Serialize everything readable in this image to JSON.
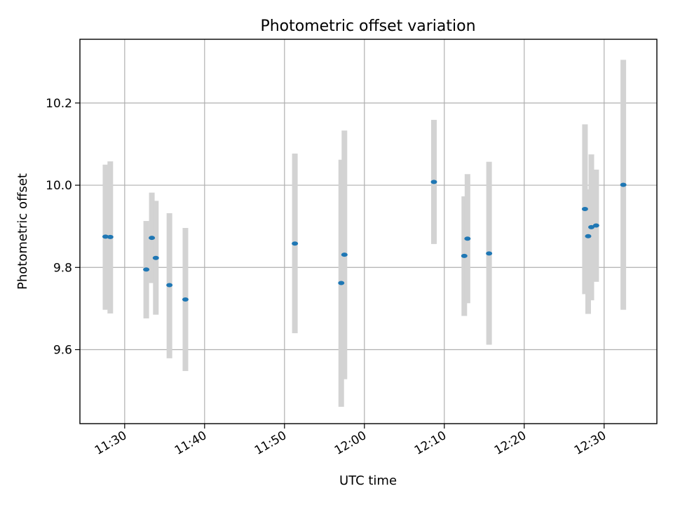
{
  "chart_data": {
    "type": "scatter",
    "title": "Photometric offset variation",
    "xlabel": "UTC time",
    "ylabel": "Photometric offset",
    "xlim": [
      "11:24:24",
      "12:36:36"
    ],
    "ylim": [
      9.42,
      10.355
    ],
    "x_ticks": [
      "11:30",
      "11:40",
      "11:50",
      "12:00",
      "12:10",
      "12:20",
      "12:30"
    ],
    "y_ticks": [
      9.6,
      9.8,
      10.0,
      10.2
    ],
    "grid": true,
    "marker_color": "#1f77b4",
    "errorbar_color": "#d3d3d3",
    "series": [
      {
        "points": [
          {
            "x": "11:27:36",
            "y": 9.875,
            "err_low": 9.697,
            "err_high": 10.05
          },
          {
            "x": "11:28:12",
            "y": 9.874,
            "err_low": 9.688,
            "err_high": 10.058
          },
          {
            "x": "11:32:42",
            "y": 9.795,
            "err_low": 9.676,
            "err_high": 9.913
          },
          {
            "x": "11:33:24",
            "y": 9.872,
            "err_low": 9.762,
            "err_high": 9.982
          },
          {
            "x": "11:33:54",
            "y": 9.823,
            "err_low": 9.685,
            "err_high": 9.962
          },
          {
            "x": "11:35:36",
            "y": 9.757,
            "err_low": 9.579,
            "err_high": 9.932
          },
          {
            "x": "11:37:36",
            "y": 9.722,
            "err_low": 9.548,
            "err_high": 9.896
          },
          {
            "x": "11:51:18",
            "y": 9.858,
            "err_low": 9.64,
            "err_high": 10.077
          },
          {
            "x": "11:57:06",
            "y": 9.762,
            "err_low": 9.461,
            "err_high": 10.062
          },
          {
            "x": "11:57:30",
            "y": 9.831,
            "err_low": 9.528,
            "err_high": 10.133
          },
          {
            "x": "12:08:42",
            "y": 10.008,
            "err_low": 9.857,
            "err_high": 10.159
          },
          {
            "x": "12:12:30",
            "y": 9.828,
            "err_low": 9.682,
            "err_high": 9.973
          },
          {
            "x": "12:12:54",
            "y": 9.87,
            "err_low": 9.713,
            "err_high": 10.027
          },
          {
            "x": "12:15:36",
            "y": 9.834,
            "err_low": 9.612,
            "err_high": 10.057
          },
          {
            "x": "12:27:36",
            "y": 9.942,
            "err_low": 9.735,
            "err_high": 10.148
          },
          {
            "x": "12:28:00",
            "y": 9.876,
            "err_low": 9.687,
            "err_high": 9.99
          },
          {
            "x": "12:28:24",
            "y": 9.898,
            "err_low": 9.72,
            "err_high": 10.075
          },
          {
            "x": "12:29:00",
            "y": 9.902,
            "err_low": 9.765,
            "err_high": 10.038
          },
          {
            "x": "12:32:24",
            "y": 10.001,
            "err_low": 9.697,
            "err_high": 10.305
          }
        ]
      }
    ]
  }
}
